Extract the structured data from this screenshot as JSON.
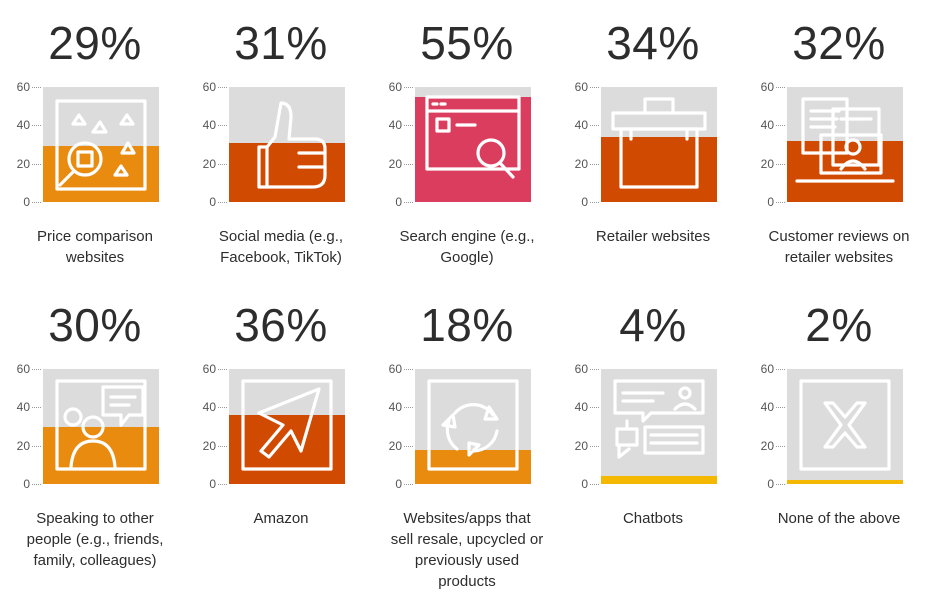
{
  "chart_data": {
    "type": "bar",
    "ylim": [
      0,
      60
    ],
    "yticks": [
      0,
      20,
      40,
      60
    ],
    "grid": false,
    "panels": [
      {
        "label": "29%",
        "value": 29,
        "caption": "Price comparison\nwebsites",
        "color": "#e98b0f",
        "icon": "price-comparison-icon"
      },
      {
        "label": "31%",
        "value": 31,
        "caption": "Social media (e.g.,\nFacebook, TikTok)",
        "color": "#d04a02",
        "icon": "thumbs-up-icon"
      },
      {
        "label": "55%",
        "value": 55,
        "caption": "Search engine (e.g.,\nGoogle)",
        "color": "#db3d5f",
        "icon": "search-browser-icon"
      },
      {
        "label": "34%",
        "value": 34,
        "caption": "Retailer websites",
        "color": "#d04a02",
        "icon": "shopping-bag-icon"
      },
      {
        "label": "32%",
        "value": 32,
        "caption": "Customer reviews on\nretailer websites",
        "color": "#d04a02",
        "icon": "reviews-icon"
      },
      {
        "label": "30%",
        "value": 30,
        "caption": "Speaking to other\npeople (e.g., friends,\nfamily, colleagues)",
        "color": "#e98b0f",
        "icon": "people-talking-icon"
      },
      {
        "label": "36%",
        "value": 36,
        "caption": "Amazon",
        "color": "#d04a02",
        "icon": "cursor-arrow-icon"
      },
      {
        "label": "18%",
        "value": 18,
        "caption": "Websites/apps that\nsell resale, upcycled or\npreviously used\nproducts",
        "color": "#e98b0f",
        "icon": "recycle-icon"
      },
      {
        "label": "4%",
        "value": 4,
        "caption": "Chatbots",
        "color": "#f5b800",
        "icon": "chatbot-icon"
      },
      {
        "label": "2%",
        "value": 2,
        "caption": "None of the above",
        "color": "#f5b800",
        "icon": "x-cross-icon"
      }
    ]
  }
}
